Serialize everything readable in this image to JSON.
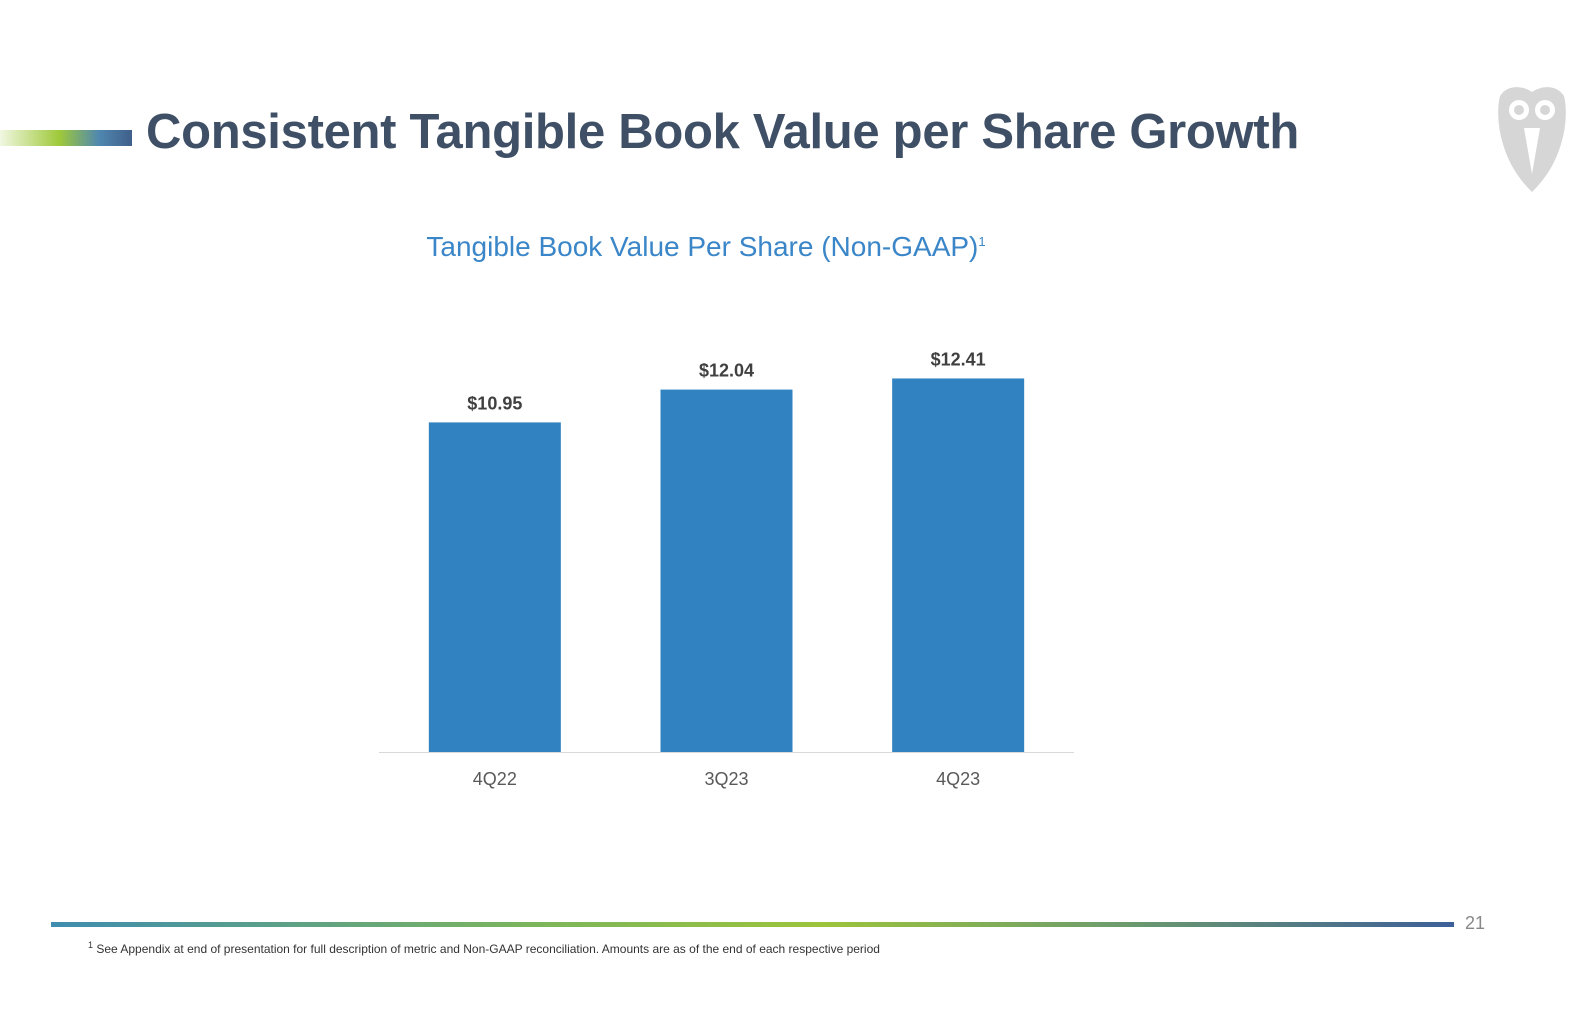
{
  "slide": {
    "title": "Consistent Tangible Book Value per Share Growth",
    "page_number": "21",
    "footnote_marker": "1",
    "footnote_text": "See Appendix at end of presentation for full description of metric and Non-GAAP reconciliation. Amounts are as of the end of each respective period"
  },
  "colors": {
    "bar": "#3182c0",
    "title": "#3e4f66",
    "chart_title": "#3a86c8",
    "axis_line": "#d9d9d9",
    "label": "#404040",
    "logo": "#d6d6d6"
  },
  "chart_data": {
    "type": "bar",
    "title": "Tangible Book Value Per Share (Non-GAAP)",
    "title_superscript": "1",
    "categories": [
      "4Q22",
      "3Q23",
      "4Q23"
    ],
    "values": [
      10.95,
      12.04,
      12.41
    ],
    "data_labels": [
      "$10.95",
      "$12.04",
      "$12.41"
    ],
    "xlabel": "",
    "ylabel": "",
    "ylim": [
      0,
      14.8
    ],
    "grid": false,
    "legend": "none"
  }
}
